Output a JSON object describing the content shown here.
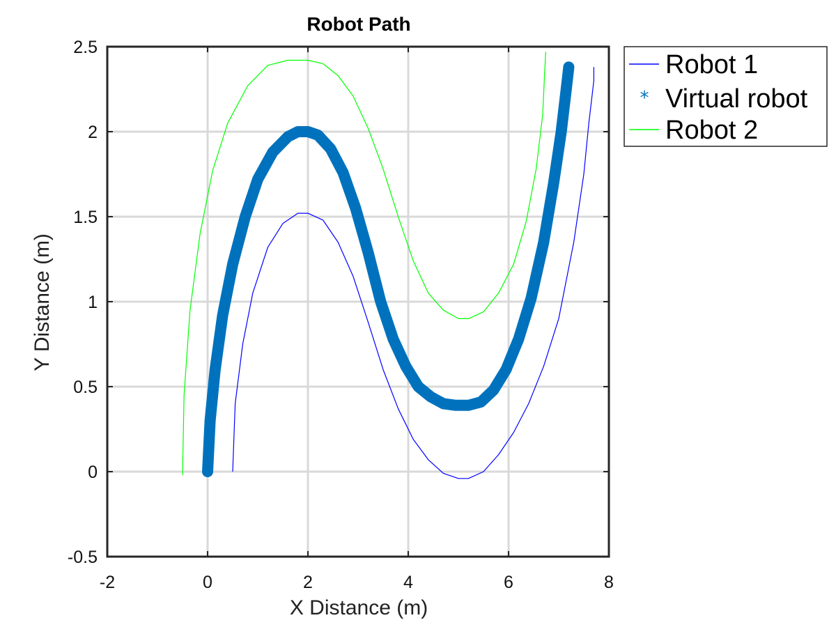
{
  "chart_data": {
    "type": "line",
    "title": "Robot Path",
    "xlabel": "X Distance (m)",
    "ylabel": "Y Distance (m)",
    "xlim": [
      -2,
      8
    ],
    "ylim": [
      -0.5,
      2.5
    ],
    "xticks": [
      -2,
      0,
      2,
      4,
      6,
      8
    ],
    "yticks": [
      -0.5,
      0,
      0.5,
      1,
      1.5,
      2,
      2.5
    ],
    "xtick_labels": [
      "-2",
      "0",
      "2",
      "4",
      "6",
      "8"
    ],
    "ytick_labels": [
      "-0.5",
      "0",
      "0.5",
      "1",
      "1.5",
      "2",
      "2.5"
    ],
    "grid": true,
    "legend_position": "outside-top-right",
    "series": [
      {
        "name": "Robot 1",
        "color": "#0000ff",
        "style": "line",
        "x": [
          0.5,
          0.55,
          0.7,
          0.9,
          1.2,
          1.5,
          1.8,
          2.0,
          2.3,
          2.6,
          2.9,
          3.2,
          3.5,
          3.8,
          4.1,
          4.4,
          4.7,
          5.0,
          5.2,
          5.5,
          5.8,
          6.1,
          6.4,
          6.7,
          7.0,
          7.3,
          7.5,
          7.6,
          7.7,
          7.7
        ],
        "y": [
          0.0,
          0.4,
          0.75,
          1.05,
          1.32,
          1.46,
          1.52,
          1.52,
          1.48,
          1.35,
          1.15,
          0.88,
          0.6,
          0.37,
          0.19,
          0.07,
          -0.01,
          -0.04,
          -0.04,
          0.0,
          0.1,
          0.23,
          0.4,
          0.62,
          0.9,
          1.35,
          1.75,
          2.05,
          2.3,
          2.38
        ]
      },
      {
        "name": "Virtual robot",
        "color": "#0072bd",
        "style": "marker",
        "marker": "*",
        "x": [
          0.0,
          0.05,
          0.15,
          0.3,
          0.5,
          0.75,
          1.0,
          1.3,
          1.6,
          1.8,
          2.0,
          2.2,
          2.45,
          2.7,
          2.95,
          3.2,
          3.45,
          3.7,
          3.95,
          4.2,
          4.45,
          4.7,
          4.95,
          5.2,
          5.45,
          5.7,
          5.95,
          6.2,
          6.45,
          6.7,
          6.9,
          7.05,
          7.15,
          7.2
        ],
        "y": [
          0.0,
          0.3,
          0.6,
          0.92,
          1.22,
          1.5,
          1.72,
          1.88,
          1.97,
          2.0,
          2.0,
          1.98,
          1.9,
          1.76,
          1.55,
          1.29,
          1.0,
          0.78,
          0.62,
          0.5,
          0.44,
          0.4,
          0.39,
          0.39,
          0.41,
          0.48,
          0.6,
          0.78,
          1.02,
          1.35,
          1.7,
          2.0,
          2.25,
          2.38
        ]
      },
      {
        "name": "Robot 2",
        "color": "#00ff00",
        "style": "line",
        "x": [
          -0.5,
          -0.47,
          -0.35,
          -0.15,
          0.1,
          0.4,
          0.8,
          1.2,
          1.6,
          2.0,
          2.3,
          2.6,
          2.9,
          3.2,
          3.5,
          3.8,
          4.1,
          4.4,
          4.7,
          5.0,
          5.2,
          5.5,
          5.8,
          6.1,
          6.35,
          6.55,
          6.68,
          6.72,
          6.74
        ],
        "y": [
          -0.02,
          0.45,
          0.95,
          1.4,
          1.77,
          2.05,
          2.27,
          2.39,
          2.42,
          2.42,
          2.4,
          2.33,
          2.21,
          2.02,
          1.78,
          1.5,
          1.24,
          1.05,
          0.95,
          0.9,
          0.9,
          0.94,
          1.05,
          1.22,
          1.47,
          1.78,
          2.1,
          2.35,
          2.47
        ]
      }
    ]
  }
}
